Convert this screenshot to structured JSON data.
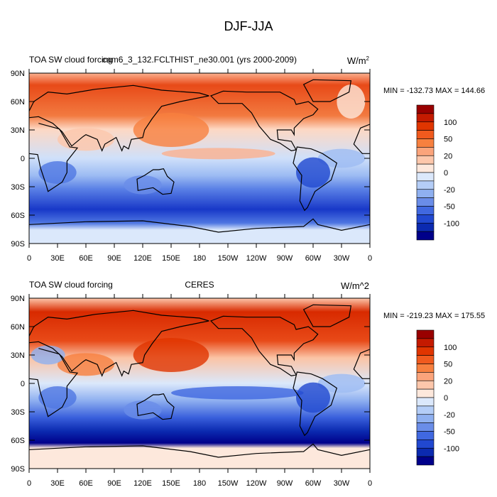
{
  "title": "DJF-JJA",
  "panels": [
    {
      "left_title": "TOA SW cloud forcing",
      "center_title": "cam6_3_132.FCLTHIST_ne30.001 (yrs 2000-2009)",
      "units": "W/m",
      "units_sup": "2",
      "min_max": "MIN = -132.73 MAX = 144.66"
    },
    {
      "left_title": "TOA SW cloud forcing",
      "center_title": "CERES",
      "units": "W/m^2",
      "min_max": "MIN = -219.23 MAX = 175.55"
    }
  ],
  "lat_labels": [
    "90N",
    "60N",
    "30N",
    "0",
    "30S",
    "60S",
    "90S"
  ],
  "lon_labels": [
    "0",
    "30E",
    "60E",
    "90E",
    "120E",
    "150E",
    "180",
    "150W",
    "120W",
    "90W",
    "60W",
    "30W",
    "0"
  ],
  "colorbar": {
    "labels": [
      "100",
      "50",
      "20",
      "0",
      "-20",
      "-50",
      "-100"
    ],
    "colors": [
      "#990000",
      "#c41a00",
      "#e03500",
      "#f05a1e",
      "#f7803f",
      "#fba47b",
      "#fdc7ab",
      "#fde8dc",
      "#dbe8fb",
      "#b4cdf7",
      "#8fb0f0",
      "#6a8de8",
      "#4068e0",
      "#2148d0",
      "#0b2ab0",
      "#00008a"
    ]
  }
}
